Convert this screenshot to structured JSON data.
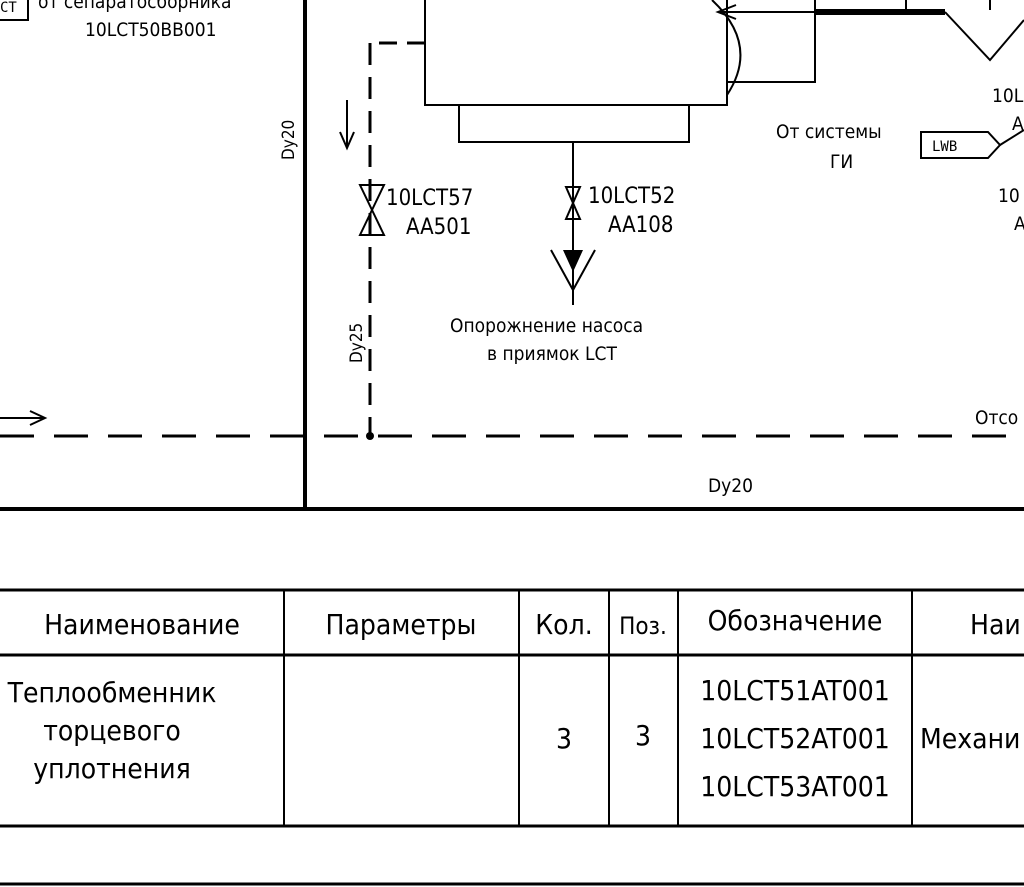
{
  "labels": {
    "from_separator_line1": "от сепаратосборника",
    "from_separator_line2": "10LCT50BB001",
    "tag_lct_left": "CT",
    "dy20_vertical": "Dy20",
    "dy25_vertical": "Dy25",
    "dy20_bottom": "Dy20",
    "valve_57_line1": "10LCT57",
    "valve_57_line2": "AA501",
    "valve_52_line1": "10LCT52",
    "valve_52_line2": "AA108",
    "drain_line1": "Опорожнение насоса",
    "drain_line2": "в приямок LCT",
    "from_system_line1": "От системы",
    "from_system_line2": "ГИ",
    "lwb_tag": "LWB",
    "right_tag_1a": "10L",
    "right_tag_1b": "A",
    "right_tag_2a": "10",
    "right_tag_2b": "A",
    "right_cut_text": "Отсо"
  },
  "table": {
    "headers": [
      "Наименование",
      "Параметры",
      "Кол.",
      "Поз.",
      "Обозначение",
      "Наи"
    ],
    "row": {
      "name_lines": [
        "Теплообменник",
        "торцевого",
        "уплотнения"
      ],
      "params": "",
      "qty": "3",
      "pos": "3",
      "designations": [
        "10LCT51AT001",
        "10LCT52AT001",
        "10LCT53AT001"
      ],
      "last": "Механи"
    }
  },
  "colors": {
    "ink": "#000000",
    "paper": "#ffffff"
  }
}
